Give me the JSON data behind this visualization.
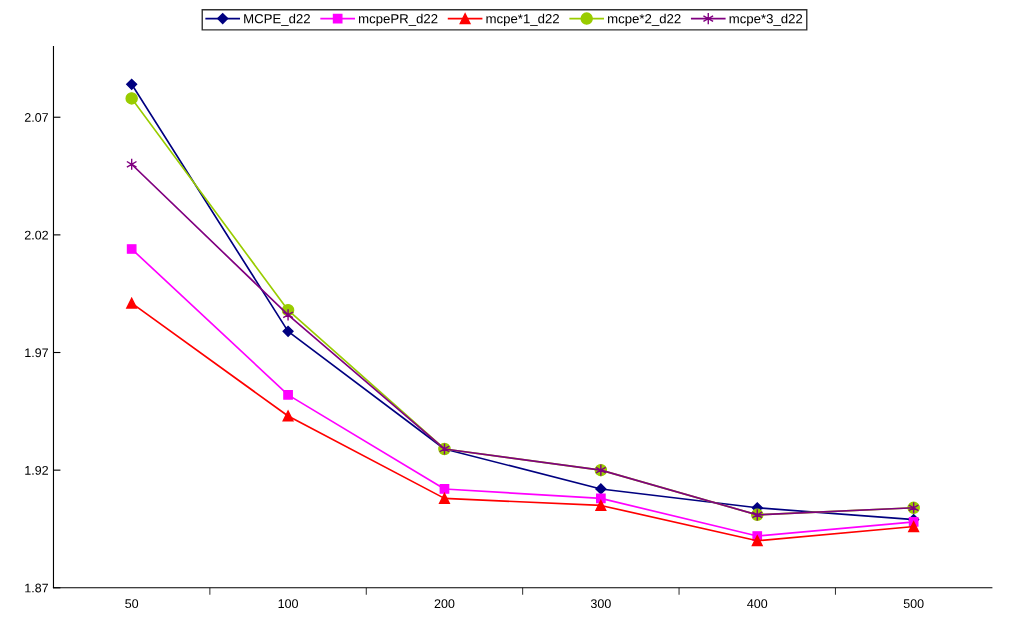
{
  "chart_data": {
    "type": "line",
    "categories": [
      "50",
      "100",
      "200",
      "300",
      "400",
      "500"
    ],
    "series": [
      {
        "name": "MCPE_d22",
        "color": "#000080",
        "marker": "diamond",
        "values": [
          2.084,
          1.979,
          1.929,
          1.912,
          1.904,
          1.899
        ]
      },
      {
        "name": "mcpePR_d22",
        "color": "#ff00ff",
        "marker": "square",
        "values": [
          2.014,
          1.952,
          1.912,
          1.908,
          1.892,
          1.898
        ]
      },
      {
        "name": "mcpe*1_d22",
        "color": "#ff0000",
        "marker": "triangle",
        "values": [
          1.991,
          1.943,
          1.908,
          1.905,
          1.89,
          1.896
        ]
      },
      {
        "name": "mcpe*2_d22",
        "color": "#99cc00",
        "marker": "circle",
        "values": [
          2.078,
          1.988,
          1.929,
          1.92,
          1.901,
          1.904
        ]
      },
      {
        "name": "mcpe*3_d22",
        "color": "#800080",
        "marker": "cross",
        "values": [
          2.05,
          1.986,
          1.929,
          1.92,
          1.901,
          1.904
        ]
      }
    ],
    "ylim": [
      1.87,
      2.1
    ],
    "yticks": [
      1.87,
      1.92,
      1.97,
      2.02,
      2.07
    ],
    "grid": false,
    "legend": "top"
  }
}
